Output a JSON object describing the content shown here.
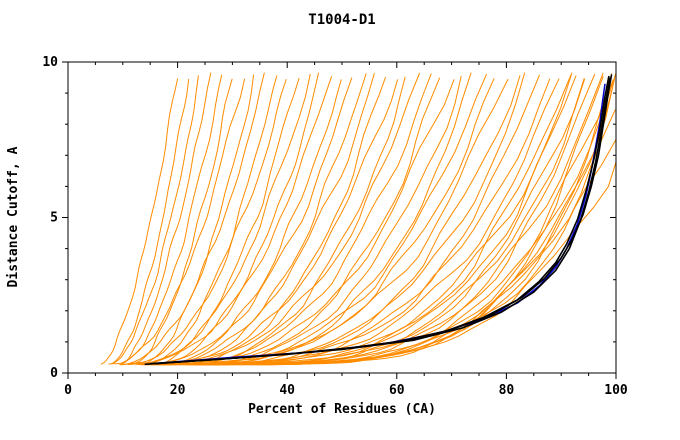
{
  "page": {
    "background": "#ffffff"
  },
  "chart_data": {
    "type": "line",
    "title": "T1004-D1",
    "xlabel": "Percent of Residues (CA)",
    "ylabel": "Distance Cutoff, A",
    "xlim": [
      0,
      100
    ],
    "ylim": [
      0,
      10
    ],
    "xticks": [
      0,
      20,
      40,
      60,
      80,
      100
    ],
    "yticks": [
      0,
      5,
      10
    ],
    "x_minor_step": 5,
    "y_minor_step": 1,
    "grid": false,
    "legend": "none",
    "y_base": 0.28,
    "y_top_default": 9.55,
    "colors": {
      "models": "#ff8c00",
      "best": "#000000",
      "highlight": "#0000cd",
      "axis": "#000000",
      "background": "#ffffff"
    },
    "series": [
      {
        "name": "predicted models (orange)",
        "role": "models",
        "color": "#ff8c00",
        "curve_params_format": "[x_start_percent, x_at_top, steepness, optional_y_max_A]",
        "curves": [
          [
            6,
            20,
            1.6
          ],
          [
            8,
            22,
            1.7
          ],
          [
            7,
            24,
            1.8
          ],
          [
            10,
            26,
            1.6
          ],
          [
            9,
            28,
            1.8
          ],
          [
            12,
            30,
            1.7
          ],
          [
            8,
            32,
            2.0
          ],
          [
            13,
            34,
            1.8
          ],
          [
            10,
            36,
            2.0
          ],
          [
            14,
            38,
            1.9
          ],
          [
            11,
            40,
            2.1
          ],
          [
            15,
            42,
            2.0
          ],
          [
            12,
            44,
            2.2
          ],
          [
            16,
            46,
            2.1
          ],
          [
            10,
            48,
            2.4
          ],
          [
            17,
            50,
            2.2
          ],
          [
            13,
            52,
            2.4
          ],
          [
            18,
            54,
            2.3
          ],
          [
            14,
            56,
            2.5
          ],
          [
            19,
            58,
            2.4
          ],
          [
            15,
            60,
            2.6
          ],
          [
            20,
            62,
            2.5
          ],
          [
            13,
            64,
            2.8
          ],
          [
            17,
            66,
            2.7
          ],
          [
            21,
            68,
            2.7
          ],
          [
            14,
            70,
            3.0
          ],
          [
            18,
            72,
            2.9
          ],
          [
            22,
            74,
            2.9
          ],
          [
            16,
            76,
            3.1
          ],
          [
            19,
            78,
            3.0
          ],
          [
            13,
            80,
            3.4
          ],
          [
            20,
            82,
            3.2
          ],
          [
            17,
            84,
            3.4
          ],
          [
            21,
            86,
            3.3
          ],
          [
            15,
            88,
            3.6
          ],
          [
            19,
            90,
            3.5
          ],
          [
            22,
            91,
            3.7
          ],
          [
            16,
            92,
            3.9
          ],
          [
            20,
            93,
            3.8
          ],
          [
            23,
            94,
            3.9
          ],
          [
            18,
            95,
            4.1
          ],
          [
            21,
            96,
            4.2
          ],
          [
            17,
            97,
            4.4
          ],
          [
            22,
            98,
            4.4
          ],
          [
            19,
            99,
            4.6
          ],
          [
            23,
            100,
            4.6
          ],
          [
            20,
            100,
            5.0
          ],
          [
            25,
            100,
            4.3
          ],
          [
            24,
            100,
            4.2,
            8.5
          ],
          [
            26,
            100,
            4.0,
            7.6
          ],
          [
            28,
            100,
            3.8,
            6.8
          ],
          [
            22,
            100,
            4.4,
            9.0
          ]
        ]
      },
      {
        "name": "highlighted model (blue)",
        "role": "highlight",
        "color": "#0000cd",
        "points": [
          [
            15,
            0.3
          ],
          [
            30,
            0.5
          ],
          [
            45,
            0.68
          ],
          [
            58,
            0.95
          ],
          [
            68,
            1.3
          ],
          [
            76,
            1.75
          ],
          [
            82,
            2.25
          ],
          [
            86,
            2.8
          ],
          [
            89,
            3.4
          ],
          [
            91,
            4.0
          ],
          [
            93,
            4.8
          ],
          [
            94.5,
            5.7
          ],
          [
            95.5,
            6.5
          ],
          [
            96.3,
            7.3
          ],
          [
            97,
            8.0
          ],
          [
            97.6,
            8.8
          ],
          [
            98,
            9.3
          ]
        ]
      },
      {
        "name": "best models (black)",
        "role": "best",
        "color": "#000000",
        "curves_points": [
          [
            [
              14,
              0.28
            ],
            [
              22,
              0.38
            ],
            [
              32,
              0.5
            ],
            [
              42,
              0.64
            ],
            [
              52,
              0.82
            ],
            [
              62,
              1.05
            ],
            [
              70,
              1.4
            ],
            [
              77,
              1.85
            ],
            [
              83,
              2.45
            ],
            [
              87,
              3.05
            ],
            [
              90,
              3.7
            ],
            [
              92,
              4.3
            ],
            [
              94,
              5.1
            ],
            [
              95.5,
              6.0
            ],
            [
              96.8,
              7.0
            ],
            [
              97.8,
              8.1
            ],
            [
              98.6,
              9.0
            ],
            [
              99.2,
              9.6
            ]
          ],
          [
            [
              16,
              0.3
            ],
            [
              28,
              0.45
            ],
            [
              40,
              0.6
            ],
            [
              52,
              0.8
            ],
            [
              63,
              1.05
            ],
            [
              72,
              1.45
            ],
            [
              79,
              1.95
            ],
            [
              85,
              2.6
            ],
            [
              89,
              3.3
            ],
            [
              91.5,
              4.0
            ],
            [
              93.5,
              4.9
            ],
            [
              95,
              5.8
            ],
            [
              96.3,
              6.8
            ],
            [
              97.3,
              7.8
            ],
            [
              98.2,
              8.8
            ],
            [
              98.9,
              9.5
            ]
          ],
          [
            [
              15,
              0.3
            ],
            [
              26,
              0.42
            ],
            [
              38,
              0.58
            ],
            [
              50,
              0.76
            ],
            [
              60,
              1.0
            ],
            [
              69,
              1.35
            ],
            [
              76,
              1.8
            ],
            [
              82,
              2.35
            ],
            [
              86,
              2.95
            ],
            [
              89,
              3.55
            ],
            [
              91,
              4.15
            ],
            [
              93,
              4.95
            ],
            [
              94.6,
              5.9
            ],
            [
              96,
              6.9
            ],
            [
              97,
              7.8
            ],
            [
              98,
              8.9
            ],
            [
              98.7,
              9.55
            ]
          ]
        ]
      }
    ]
  }
}
